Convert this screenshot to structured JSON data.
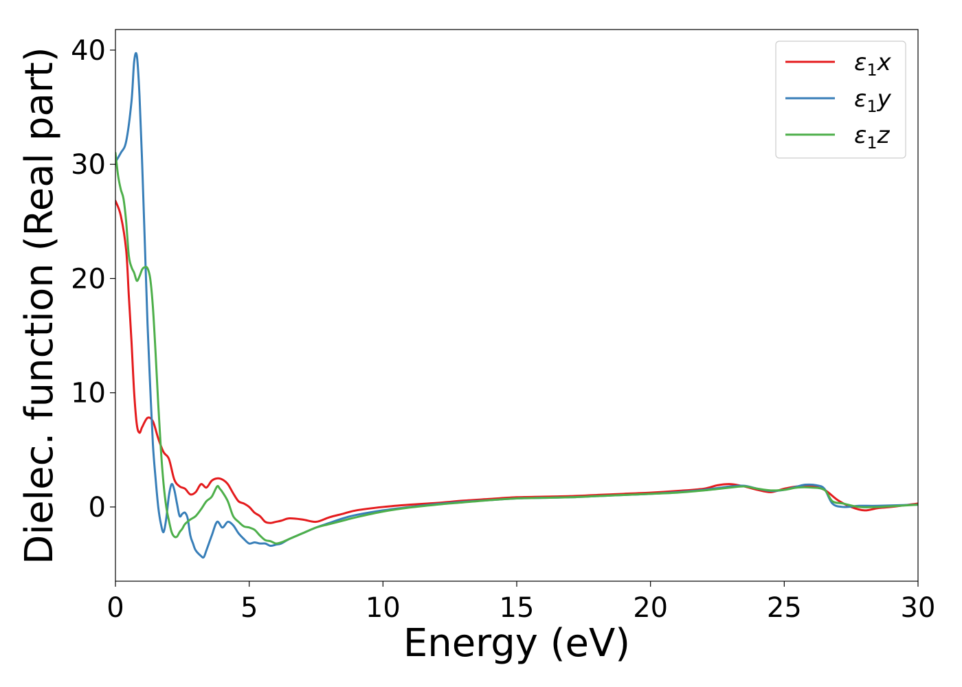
{
  "chart_data": {
    "type": "line",
    "xlabel": "Energy (eV)",
    "ylabel": "Dielec. function (Real part)",
    "xlim": [
      0,
      30
    ],
    "ylim": [
      -6.5,
      41.8
    ],
    "xticks": [
      0,
      5,
      10,
      15,
      20,
      25,
      30
    ],
    "yticks": [
      0,
      10,
      20,
      30,
      40
    ],
    "legend_position": "top-right",
    "grid": false,
    "series": [
      {
        "name": "ε₁x",
        "name_symbol": "ε",
        "name_subscript": "1",
        "name_suffix": "x",
        "color": "#e41a1c",
        "x": [
          0,
          0.2,
          0.4,
          0.5,
          0.6,
          0.7,
          0.8,
          0.9,
          1.0,
          1.2,
          1.4,
          1.6,
          1.8,
          2.0,
          2.2,
          2.4,
          2.6,
          2.8,
          3.0,
          3.2,
          3.4,
          3.6,
          3.8,
          4.0,
          4.2,
          4.4,
          4.6,
          4.8,
          5.0,
          5.2,
          5.4,
          5.6,
          5.8,
          6.0,
          6.2,
          6.5,
          7.0,
          7.5,
          8.0,
          8.5,
          9.0,
          10.0,
          11.0,
          12.0,
          13.0,
          14.0,
          15.0,
          16.0,
          17.0,
          18.0,
          19.0,
          20.0,
          21.0,
          22.0,
          22.5,
          23.0,
          23.5,
          24.0,
          24.5,
          25.0,
          25.5,
          26.0,
          26.5,
          27.0,
          27.5,
          28.0,
          28.5,
          29.0,
          30.0
        ],
        "y": [
          26.8,
          25.5,
          22.5,
          18.5,
          14.5,
          10.0,
          7.2,
          6.5,
          7.0,
          7.8,
          7.5,
          6.0,
          4.8,
          4.2,
          2.4,
          1.8,
          1.6,
          1.1,
          1.3,
          2.0,
          1.7,
          2.3,
          2.5,
          2.4,
          2.0,
          1.2,
          0.5,
          0.3,
          0.0,
          -0.5,
          -0.8,
          -1.3,
          -1.4,
          -1.3,
          -1.2,
          -1.0,
          -1.1,
          -1.3,
          -0.9,
          -0.6,
          -0.3,
          0.0,
          0.2,
          0.35,
          0.55,
          0.7,
          0.85,
          0.9,
          0.95,
          1.05,
          1.15,
          1.25,
          1.4,
          1.6,
          1.9,
          2.0,
          1.8,
          1.5,
          1.3,
          1.6,
          1.8,
          1.8,
          1.5,
          0.6,
          0.0,
          -0.3,
          -0.1,
          0.0,
          0.3
        ]
      },
      {
        "name": "ε₁y",
        "name_symbol": "ε",
        "name_subscript": "1",
        "name_suffix": "y",
        "color": "#377eb8",
        "x": [
          0,
          0.2,
          0.4,
          0.6,
          0.7,
          0.8,
          0.9,
          1.0,
          1.1,
          1.2,
          1.3,
          1.4,
          1.5,
          1.6,
          1.7,
          1.8,
          1.9,
          2.0,
          2.1,
          2.2,
          2.3,
          2.4,
          2.5,
          2.6,
          2.7,
          2.8,
          2.9,
          3.0,
          3.2,
          3.3,
          3.4,
          3.6,
          3.8,
          4.0,
          4.2,
          4.4,
          4.6,
          4.8,
          5.0,
          5.2,
          5.4,
          5.6,
          5.8,
          6.0,
          6.2,
          6.5,
          7.0,
          7.5,
          8.0,
          8.5,
          9.0,
          10.0,
          11.0,
          12.0,
          13.0,
          14.0,
          15.0,
          16.0,
          17.0,
          18.0,
          19.0,
          20.0,
          21.0,
          22.0,
          23.0,
          23.5,
          24.0,
          24.5,
          25.0,
          25.5,
          25.8,
          26.2,
          26.5,
          26.8,
          27.2,
          27.8,
          28.5,
          30.0
        ],
        "y": [
          30.2,
          31.0,
          32.0,
          35.5,
          39.0,
          39.5,
          36.0,
          30.0,
          23.0,
          16.0,
          10.5,
          5.5,
          2.5,
          0.0,
          -1.5,
          -2.2,
          -1.0,
          1.0,
          2.0,
          1.5,
          0.3,
          -0.8,
          -0.6,
          -0.5,
          -1.0,
          -2.5,
          -3.2,
          -3.8,
          -4.3,
          -4.4,
          -3.8,
          -2.5,
          -1.3,
          -1.8,
          -1.3,
          -1.6,
          -2.3,
          -2.8,
          -3.2,
          -3.1,
          -3.2,
          -3.2,
          -3.4,
          -3.3,
          -3.2,
          -2.8,
          -2.3,
          -1.8,
          -1.4,
          -1.0,
          -0.7,
          -0.3,
          0.0,
          0.25,
          0.45,
          0.6,
          0.75,
          0.8,
          0.85,
          0.95,
          1.05,
          1.15,
          1.3,
          1.5,
          1.8,
          1.85,
          1.6,
          1.4,
          1.5,
          1.8,
          1.95,
          1.9,
          1.6,
          0.3,
          0.0,
          0.1,
          0.1,
          0.2
        ]
      },
      {
        "name": "ε₁z",
        "name_symbol": "ε",
        "name_subscript": "1",
        "name_suffix": "z",
        "color": "#4daf4a",
        "x": [
          0,
          0.1,
          0.2,
          0.3,
          0.4,
          0.5,
          0.6,
          0.7,
          0.8,
          0.9,
          1.0,
          1.1,
          1.2,
          1.3,
          1.4,
          1.5,
          1.6,
          1.7,
          1.8,
          1.9,
          2.0,
          2.1,
          2.2,
          2.3,
          2.4,
          2.5,
          2.6,
          2.8,
          3.0,
          3.2,
          3.4,
          3.6,
          3.8,
          3.9,
          4.0,
          4.2,
          4.4,
          4.6,
          4.8,
          5.0,
          5.2,
          5.4,
          5.6,
          5.8,
          6.0,
          6.2,
          6.5,
          7.0,
          7.5,
          8.0,
          8.5,
          9.0,
          10.0,
          11.0,
          12.0,
          13.0,
          14.0,
          15.0,
          16.0,
          17.0,
          18.0,
          19.0,
          20.0,
          21.0,
          22.0,
          23.0,
          23.5,
          24.0,
          24.5,
          25.0,
          25.5,
          26.0,
          26.5,
          26.8,
          27.2,
          27.8,
          28.5,
          30.0
        ],
        "y": [
          31.0,
          29.0,
          27.8,
          27.0,
          25.0,
          22.0,
          21.0,
          20.5,
          19.8,
          20.2,
          20.8,
          21.0,
          20.9,
          20.0,
          17.5,
          13.5,
          9.0,
          5.0,
          2.0,
          0.0,
          -1.2,
          -2.2,
          -2.6,
          -2.6,
          -2.2,
          -1.9,
          -1.5,
          -1.1,
          -0.8,
          -0.2,
          0.5,
          0.9,
          1.8,
          1.6,
          1.3,
          0.5,
          -0.8,
          -1.3,
          -1.7,
          -1.8,
          -2.0,
          -2.5,
          -2.9,
          -3.0,
          -3.2,
          -3.1,
          -2.8,
          -2.3,
          -1.8,
          -1.5,
          -1.2,
          -0.9,
          -0.4,
          -0.05,
          0.2,
          0.4,
          0.6,
          0.75,
          0.8,
          0.85,
          0.95,
          1.05,
          1.15,
          1.25,
          1.45,
          1.7,
          1.8,
          1.6,
          1.45,
          1.5,
          1.7,
          1.7,
          1.5,
          0.5,
          0.3,
          0.0,
          0.0,
          0.2
        ]
      }
    ]
  }
}
